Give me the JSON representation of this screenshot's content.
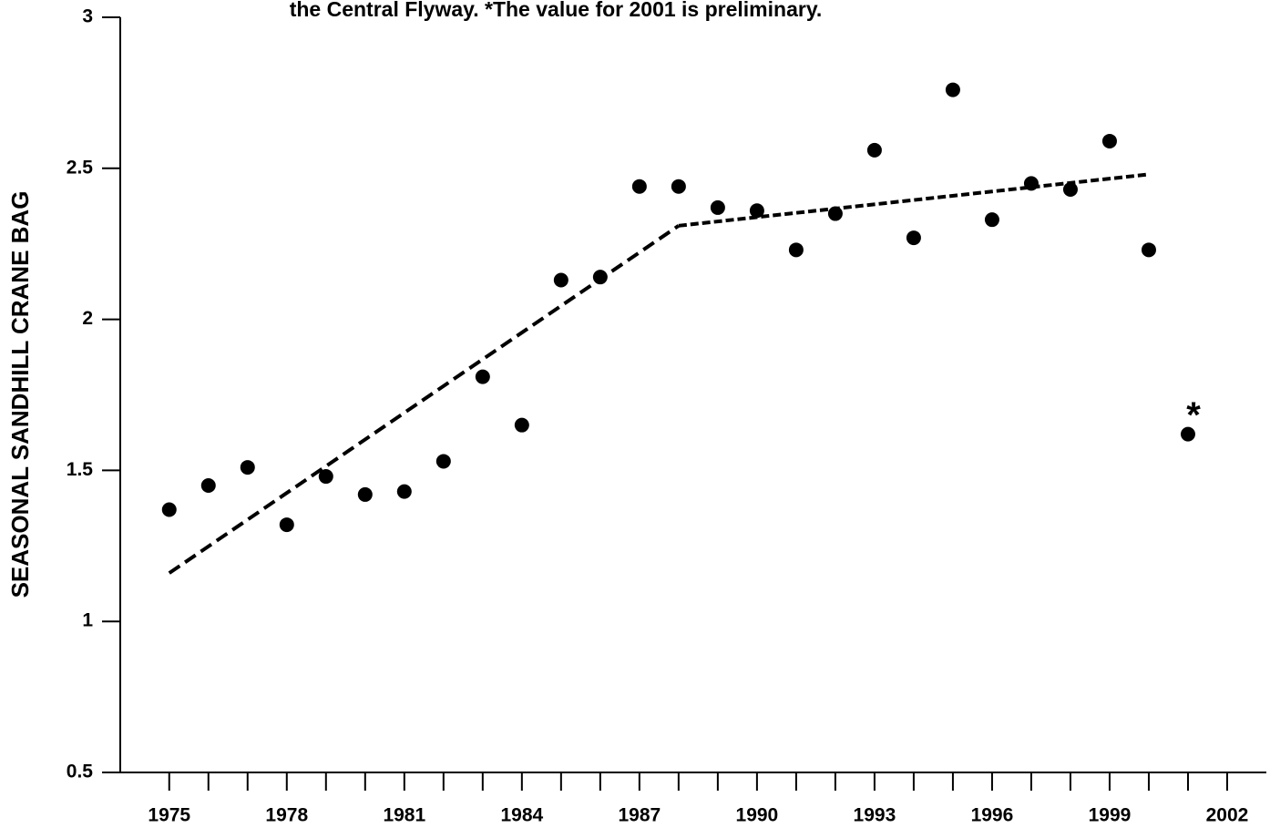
{
  "chart_data": {
    "type": "scatter",
    "title": "the Central Flyway. *The value  for 2001 is preliminary.",
    "y_label": "SEASONAL SANDHILL CRANE BAG",
    "annotation": "*",
    "x": [
      1975,
      1976,
      1977,
      1978,
      1979,
      1980,
      1981,
      1982,
      1983,
      1984,
      1985,
      1986,
      1987,
      1988,
      1989,
      1990,
      1991,
      1992,
      1993,
      1994,
      1995,
      1996,
      1997,
      1998,
      1999,
      2000,
      2001
    ],
    "values": [
      1.37,
      1.45,
      1.51,
      1.32,
      1.48,
      1.42,
      1.43,
      1.53,
      1.81,
      1.65,
      2.13,
      2.14,
      2.44,
      2.44,
      2.37,
      2.36,
      2.23,
      2.35,
      2.56,
      2.27,
      2.76,
      2.33,
      2.45,
      2.43,
      2.59,
      2.23,
      1.62
    ],
    "color": "#000000",
    "trend_lines": [
      {
        "x": [
          1975,
          1988
        ],
        "values": [
          1.16,
          2.31
        ],
        "dash": "14 7"
      },
      {
        "x": [
          1988,
          2000
        ],
        "values": [
          2.31,
          2.48
        ],
        "dash": "9 4"
      }
    ],
    "xlim": [
      1973.75,
      2003
    ],
    "ylim": [
      0.5,
      3
    ],
    "xticks": [
      1975,
      1978,
      1981,
      1984,
      1987,
      1990,
      1993,
      1996,
      1999,
      2002
    ],
    "xminorticks": [
      1976,
      1977,
      1979,
      1980,
      1982,
      1983,
      1985,
      1986,
      1988,
      1989,
      1991,
      1992,
      1994,
      1995,
      1997,
      1998,
      2000,
      2001
    ],
    "yticks": [
      0.5,
      1,
      1.5,
      2,
      2.5,
      3
    ],
    "grid": false
  }
}
